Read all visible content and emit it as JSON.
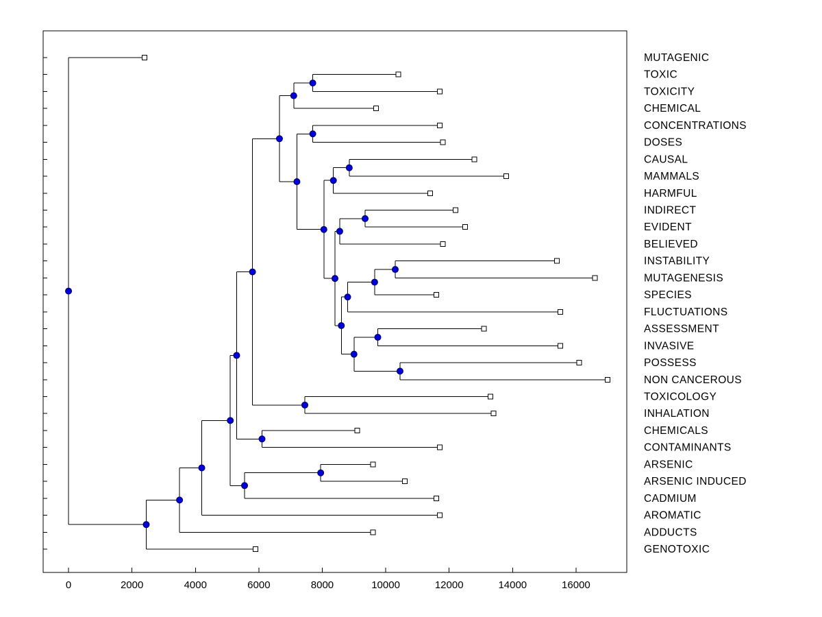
{
  "figure": {
    "background": "#ffffff"
  },
  "chart_data": {
    "type": "dendrogram",
    "orientation": "left-to-right",
    "title": "",
    "xlabel": "",
    "ylabel": "",
    "xlim": [
      -800,
      17600
    ],
    "x_ticks": [
      0,
      2000,
      4000,
      6000,
      8000,
      10000,
      12000,
      14000,
      16000
    ],
    "grid": false,
    "colors": {
      "line": "#000000",
      "axis": "#000000",
      "text": "#000000",
      "node_fill": "#0000dd",
      "node_stroke": "#000050",
      "leaf_fill": "#ffffff",
      "leaf_stroke": "#000000"
    },
    "markers": {
      "internal_node": "filled-circle-icon",
      "leaf_node": "open-square-icon"
    },
    "tree": {
      "value": 0,
      "children": [
        {
          "label": "MUTAGENIC",
          "value": 2400
        },
        {
          "value": 2450,
          "children": [
            {
              "value": 3500,
              "children": [
                {
                  "value": 4200,
                  "children": [
                    {
                      "value": 5100,
                      "children": [
                        {
                          "value": 5300,
                          "children": [
                            {
                              "value": 5800,
                              "children": [
                                {
                                  "value": 6650,
                                  "children": [
                                    {
                                      "value": 7100,
                                      "children": [
                                        {
                                          "value": 7700,
                                          "children": [
                                            {
                                              "label": "TOXIC",
                                              "value": 10400
                                            },
                                            {
                                              "label": "TOXICITY",
                                              "value": 11700
                                            }
                                          ]
                                        },
                                        {
                                          "label": "CHEMICAL",
                                          "value": 9700
                                        }
                                      ]
                                    },
                                    {
                                      "value": 7200,
                                      "children": [
                                        {
                                          "value": 7700,
                                          "children": [
                                            {
                                              "label": "CONCENTRATIONS",
                                              "value": 11700
                                            },
                                            {
                                              "label": "DOSES",
                                              "value": 11800
                                            }
                                          ]
                                        },
                                        {
                                          "value": 8050,
                                          "children": [
                                            {
                                              "value": 8350,
                                              "children": [
                                                {
                                                  "value": 8850,
                                                  "children": [
                                                    {
                                                      "label": "CAUSAL",
                                                      "value": 12800
                                                    },
                                                    {
                                                      "label": "MAMMALS",
                                                      "value": 13800
                                                    }
                                                  ]
                                                },
                                                {
                                                  "label": "HARMFUL",
                                                  "value": 11400
                                                }
                                              ]
                                            },
                                            {
                                              "value": 8400,
                                              "children": [
                                                {
                                                  "value": 8550,
                                                  "children": [
                                                    {
                                                      "value": 9350,
                                                      "children": [
                                                        {
                                                          "label": "INDIRECT",
                                                          "value": 12200
                                                        },
                                                        {
                                                          "label": "EVIDENT",
                                                          "value": 12500
                                                        }
                                                      ]
                                                    },
                                                    {
                                                      "label": "BELIEVED",
                                                      "value": 11800
                                                    }
                                                  ]
                                                },
                                                {
                                                  "value": 8600,
                                                  "children": [
                                                    {
                                                      "value": 8800,
                                                      "children": [
                                                        {
                                                          "value": 9650,
                                                          "children": [
                                                            {
                                                              "value": 10300,
                                                              "children": [
                                                                {
                                                                  "label": "INSTABILITY",
                                                                  "value": 15400
                                                                },
                                                                {
                                                                  "label": "MUTAGENESIS",
                                                                  "value": 16600
                                                                }
                                                              ]
                                                            },
                                                            {
                                                              "label": "SPECIES",
                                                              "value": 11600
                                                            }
                                                          ]
                                                        },
                                                        {
                                                          "label": "FLUCTUATIONS",
                                                          "value": 15500
                                                        }
                                                      ]
                                                    },
                                                    {
                                                      "value": 9000,
                                                      "children": [
                                                        {
                                                          "value": 9750,
                                                          "children": [
                                                            {
                                                              "label": "ASSESSMENT",
                                                              "value": 13100
                                                            },
                                                            {
                                                              "label": "INVASIVE",
                                                              "value": 15500
                                                            }
                                                          ]
                                                        },
                                                        {
                                                          "value": 10450,
                                                          "children": [
                                                            {
                                                              "label": "POSSESS",
                                                              "value": 16100
                                                            },
                                                            {
                                                              "label": "NON CANCEROUS",
                                                              "value": 17000
                                                            }
                                                          ]
                                                        }
                                                      ]
                                                    }
                                                  ]
                                                }
                                              ]
                                            }
                                          ]
                                        }
                                      ]
                                    }
                                  ]
                                },
                                {
                                  "value": 7450,
                                  "children": [
                                    {
                                      "label": "TOXICOLOGY",
                                      "value": 13300
                                    },
                                    {
                                      "label": "INHALATION",
                                      "value": 13400
                                    }
                                  ]
                                }
                              ]
                            },
                            {
                              "value": 6100,
                              "children": [
                                {
                                  "label": "CHEMICALS",
                                  "value": 9100
                                },
                                {
                                  "label": "CONTAMINANTS",
                                  "value": 11700
                                }
                              ]
                            }
                          ]
                        },
                        {
                          "value": 5550,
                          "children": [
                            {
                              "value": 7950,
                              "children": [
                                {
                                  "label": "ARSENIC",
                                  "value": 9600
                                },
                                {
                                  "label": "ARSENIC INDUCED",
                                  "value": 10600
                                }
                              ]
                            },
                            {
                              "label": "CADMIUM",
                              "value": 11600
                            }
                          ]
                        }
                      ]
                    },
                    {
                      "label": "AROMATIC",
                      "value": 11700
                    }
                  ]
                },
                {
                  "label": "ADDUCTS",
                  "value": 9600
                }
              ]
            },
            {
              "label": "GENOTOXIC",
              "value": 5900
            }
          ]
        }
      ]
    }
  }
}
